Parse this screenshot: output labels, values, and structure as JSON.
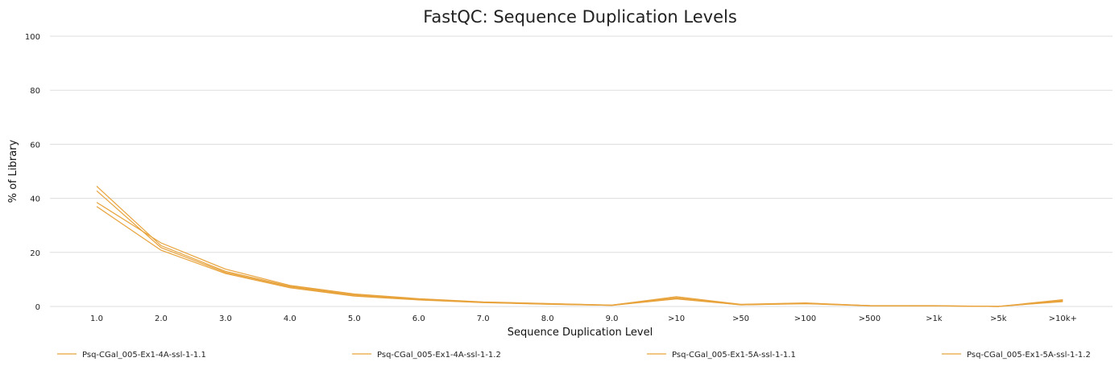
{
  "chart_data": {
    "type": "line",
    "title": "FastQC: Sequence Duplication Levels",
    "xlabel": "Sequence Duplication Level",
    "ylabel": "% of Library",
    "ylim": [
      0,
      100
    ],
    "yticks": [
      0,
      20,
      40,
      60,
      80,
      100
    ],
    "grid": true,
    "legend_position": "bottom",
    "categories": [
      "1.0",
      "2.0",
      "3.0",
      "4.0",
      "5.0",
      "6.0",
      "7.0",
      "8.0",
      "9.0",
      ">10",
      ">50",
      ">100",
      ">500",
      ">1k",
      ">5k",
      ">10k+"
    ],
    "series": [
      {
        "name": "Psq-CGal_005-Ex1-4A-ssl-1-1.1",
        "color": "#e8a33c",
        "values": [
          44.5,
          22.5,
          13.0,
          7.5,
          4.3,
          2.7,
          1.6,
          1.0,
          0.5,
          3.2,
          0.7,
          1.2,
          0.3,
          0.2,
          0.0,
          1.8
        ]
      },
      {
        "name": "Psq-CGal_005-Ex1-4A-ssl-1-1.2",
        "color": "#e8a33c",
        "values": [
          42.8,
          21.8,
          12.6,
          7.2,
          4.0,
          2.5,
          1.5,
          0.9,
          0.4,
          3.0,
          0.6,
          1.1,
          0.3,
          0.2,
          0.0,
          2.2
        ]
      },
      {
        "name": "Psq-CGal_005-Ex1-5A-ssl-1-1.1",
        "color": "#e8a33c",
        "values": [
          38.5,
          23.5,
          13.8,
          7.8,
          4.6,
          2.9,
          1.7,
          1.1,
          0.5,
          3.6,
          0.8,
          1.3,
          0.3,
          0.3,
          0.0,
          2.5
        ]
      },
      {
        "name": "Psq-CGal_005-Ex1-5A-ssl-1-1.2",
        "color": "#e8a33c",
        "values": [
          37.0,
          20.8,
          12.2,
          6.9,
          3.8,
          2.4,
          1.4,
          0.8,
          0.4,
          2.8,
          0.6,
          1.0,
          0.2,
          0.2,
          0.0,
          2.0
        ]
      }
    ]
  }
}
